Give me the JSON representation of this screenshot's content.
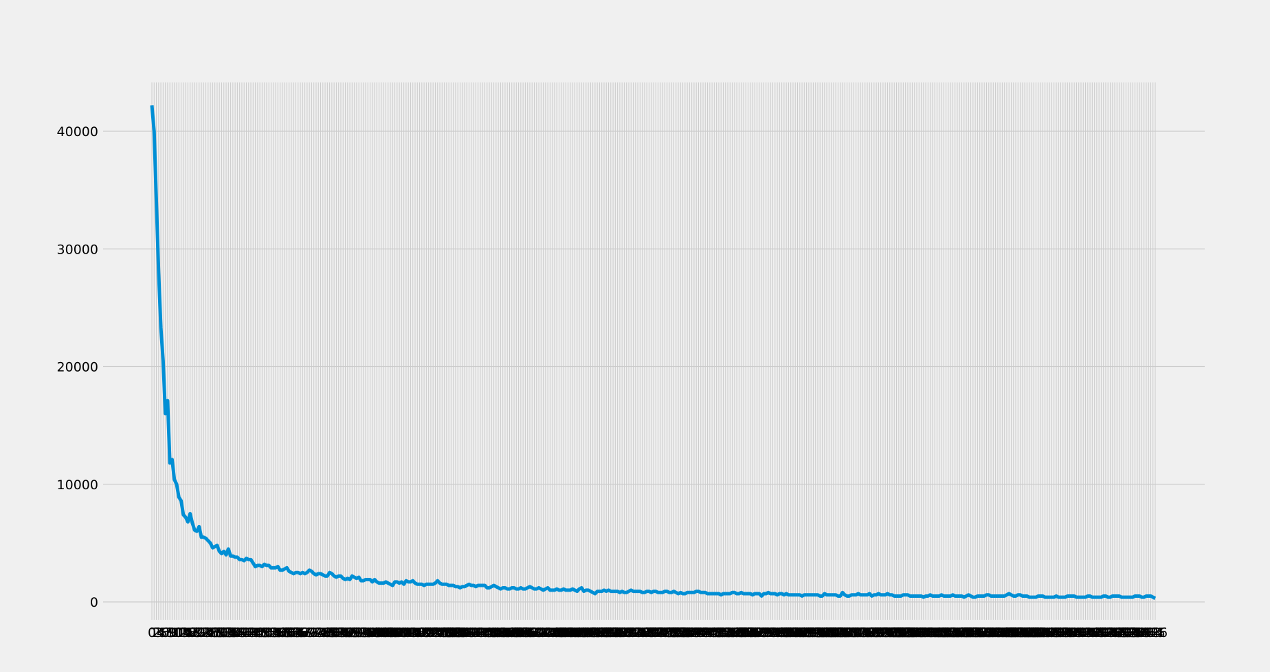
{
  "chart_data": {
    "type": "line",
    "title": "",
    "xlabel": "",
    "ylabel": "",
    "grid": true,
    "x_range": [
      0,
      427
    ],
    "ylim": [
      -1500,
      44200
    ],
    "yticks": [
      0,
      10000,
      20000,
      30000,
      40000
    ],
    "ytick_labels": [
      "0",
      "10000",
      "20000",
      "30000",
      "40000"
    ],
    "xtick_labels_note": "one tick per index 0..427; labels overlap into an unreadable band",
    "xtick_first_labels": [
      "0",
      "2",
      "5",
      "6",
      "7"
    ],
    "xtick_last_label": "427",
    "series": [
      {
        "name": "series",
        "color": "#008fd5",
        "values": [
          42200,
          40000,
          34000,
          28000,
          23300,
          20500,
          16000,
          17100,
          11800,
          12100,
          10400,
          10000,
          8900,
          8600,
          7400,
          7200,
          6800,
          7500,
          6700,
          6100,
          6000,
          6400,
          5500,
          5500,
          5400,
          5200,
          5000,
          4600,
          4700,
          4800,
          4300,
          4100,
          4300,
          4000,
          4500,
          3900,
          3900,
          3800,
          3800,
          3600,
          3600,
          3500,
          3700,
          3600,
          3600,
          3300,
          3000,
          3100,
          3100,
          3000,
          3200,
          3100,
          3100,
          2900,
          2900,
          2900,
          3000,
          2700,
          2700,
          2800,
          2900,
          2600,
          2500,
          2400,
          2500,
          2500,
          2400,
          2500,
          2400,
          2500,
          2700,
          2600,
          2400,
          2300,
          2400,
          2400,
          2300,
          2200,
          2200,
          2500,
          2400,
          2200,
          2100,
          2200,
          2200,
          2000,
          1900,
          2000,
          1900,
          2200,
          2100,
          2000,
          2100,
          1800,
          1800,
          1900,
          1900,
          1900,
          1700,
          1900,
          1700,
          1600,
          1600,
          1600,
          1700,
          1600,
          1500,
          1400,
          1700,
          1700,
          1600,
          1700,
          1500,
          1800,
          1700,
          1700,
          1800,
          1600,
          1500,
          1500,
          1500,
          1400,
          1500,
          1500,
          1500,
          1500,
          1600,
          1800,
          1600,
          1500,
          1500,
          1500,
          1400,
          1400,
          1400,
          1300,
          1300,
          1200,
          1300,
          1300,
          1400,
          1500,
          1400,
          1400,
          1300,
          1400,
          1400,
          1400,
          1400,
          1200,
          1200,
          1300,
          1400,
          1300,
          1200,
          1100,
          1200,
          1200,
          1100,
          1100,
          1200,
          1200,
          1100,
          1100,
          1200,
          1100,
          1100,
          1200,
          1300,
          1200,
          1100,
          1100,
          1200,
          1100,
          1000,
          1100,
          1200,
          1000,
          1000,
          1000,
          1100,
          1000,
          1000,
          1100,
          1000,
          1000,
          1000,
          1100,
          1000,
          900,
          1100,
          1200,
          900,
          1000,
          1000,
          900,
          800,
          700,
          900,
          900,
          900,
          1000,
          900,
          1000,
          900,
          900,
          900,
          900,
          800,
          900,
          800,
          800,
          900,
          1000,
          900,
          900,
          900,
          900,
          800,
          800,
          900,
          900,
          800,
          900,
          900,
          800,
          800,
          800,
          900,
          900,
          800,
          800,
          900,
          800,
          700,
          800,
          700,
          700,
          800,
          800,
          800,
          800,
          900,
          900,
          800,
          800,
          800,
          700,
          700,
          700,
          700,
          700,
          700,
          600,
          700,
          700,
          700,
          700,
          800,
          800,
          700,
          700,
          800,
          700,
          700,
          700,
          700,
          600,
          700,
          700,
          700,
          500,
          700,
          700,
          800,
          700,
          700,
          700,
          600,
          700,
          700,
          600,
          700,
          600,
          600,
          600,
          600,
          600,
          600,
          500,
          600,
          600,
          600,
          600,
          600,
          600,
          600,
          500,
          500,
          700,
          600,
          600,
          600,
          600,
          600,
          500,
          500,
          800,
          600,
          500,
          500,
          600,
          600,
          600,
          700,
          600,
          600,
          600,
          600,
          700,
          500,
          600,
          600,
          700,
          600,
          600,
          600,
          700,
          600,
          600,
          500,
          500,
          500,
          500,
          600,
          600,
          600,
          500,
          500,
          500,
          500,
          500,
          500,
          400,
          500,
          500,
          600,
          500,
          500,
          500,
          500,
          600,
          500,
          500,
          500,
          500,
          600,
          500,
          500,
          500,
          500,
          400,
          500,
          600,
          500,
          400,
          400,
          500,
          500,
          500,
          500,
          600,
          600,
          500,
          500,
          500,
          500,
          500,
          500,
          500,
          600,
          700,
          600,
          500,
          500,
          600,
          600,
          500,
          500,
          500,
          400,
          400,
          400,
          400,
          500,
          500,
          500,
          400,
          400,
          400,
          400,
          400,
          500,
          400,
          400,
          400,
          400,
          500,
          500,
          500,
          500,
          400,
          400,
          400,
          400,
          400,
          500,
          500,
          400,
          400,
          400,
          400,
          400,
          500,
          500,
          400,
          400,
          500,
          500,
          500,
          500,
          400,
          400,
          400,
          400,
          400,
          400,
          500,
          500,
          500,
          400,
          400,
          500,
          500,
          500,
          400,
          300
        ]
      }
    ]
  }
}
